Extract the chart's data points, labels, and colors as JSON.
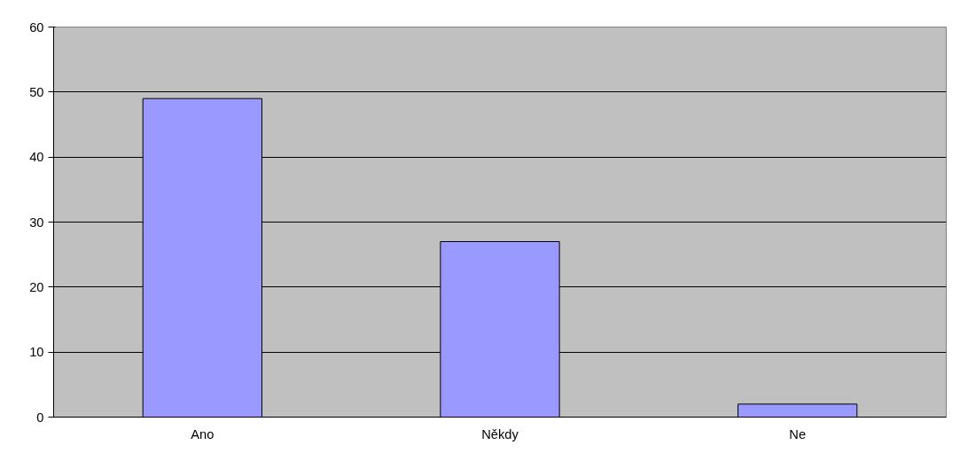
{
  "chart_data": {
    "type": "bar",
    "categories": [
      "Ano",
      "Někdy",
      "Ne"
    ],
    "values": [
      49,
      27,
      2
    ],
    "color": "#9999ff",
    "ylim": [
      0,
      60
    ],
    "yticks": [
      0,
      10,
      20,
      30,
      40,
      50,
      60
    ],
    "grid": "y"
  }
}
